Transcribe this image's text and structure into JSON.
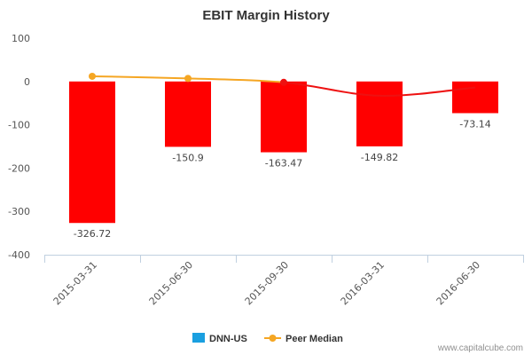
{
  "chart_data": {
    "type": "bar",
    "title": "EBIT Margin History",
    "categories": [
      "2015-03-31",
      "2015-06-30",
      "2015-09-30",
      "2016-03-31",
      "2016-06-30"
    ],
    "ylim": [
      -400,
      100
    ],
    "yticks": [
      100,
      0,
      -100,
      -200,
      -300,
      -400
    ],
    "grid": false,
    "legend_position": "bottom",
    "series": [
      {
        "name": "DNN-US",
        "type": "bar",
        "legend_color": "#1a9fe0",
        "bar_color": "#ff0000",
        "values": [
          -326.72,
          -150.9,
          -163.47,
          -149.82,
          -73.14
        ],
        "labels": [
          "-326.72",
          "-150.9",
          "-163.47",
          "-149.82",
          "-73.14"
        ]
      },
      {
        "name": "Peer Median",
        "type": "line",
        "color": "#f5a623",
        "trend_color": "#ee1111",
        "values": [
          12,
          7,
          -2,
          -33,
          -14
        ]
      }
    ],
    "credit": "www.capitalcube.com"
  }
}
